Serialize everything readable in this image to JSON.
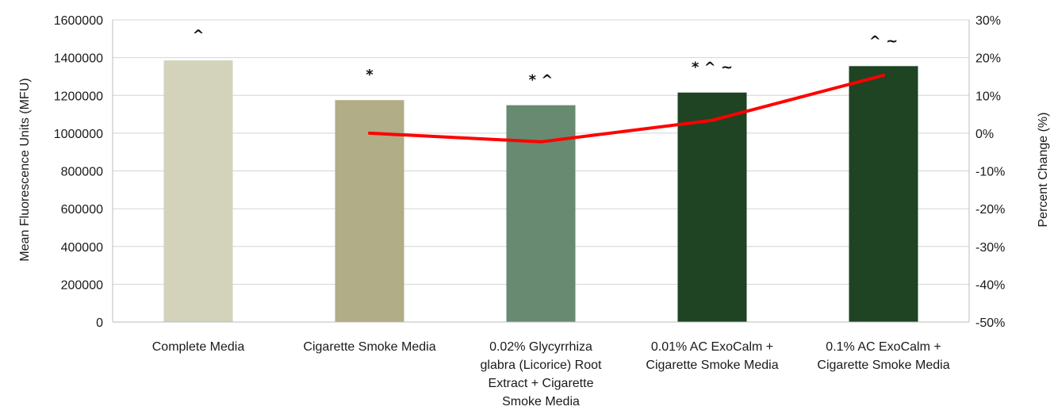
{
  "chart_data": {
    "type": "bar",
    "categories": [
      [
        "Complete Media"
      ],
      [
        "Cigarette Smoke Media"
      ],
      [
        "0.02% Glycyrrhiza",
        "glabra (Licorice) Root",
        "Extract + Cigarette",
        "Smoke Media"
      ],
      [
        "0.01% AC ExoCalm +",
        "Cigarette Smoke Media"
      ],
      [
        "0.1% AC ExoCalm +",
        "Cigarette Smoke Media"
      ]
    ],
    "series": [
      {
        "type": "bar",
        "axis": "left",
        "values": [
          1385000,
          1175000,
          1148000,
          1215000,
          1355000
        ],
        "colors": [
          "#d3d3bc",
          "#b0ad87",
          "#688a70",
          "#1e4423",
          "#1e4423"
        ]
      },
      {
        "type": "line",
        "axis": "right",
        "color": "#ff0000",
        "values": [
          null,
          0,
          -2.3,
          3.4,
          15.3
        ]
      }
    ],
    "markers": [
      "^",
      "*",
      "* ^",
      "* ^ ~",
      "^ ~"
    ],
    "ylabel": "Mean Fluorescence Units (MFU)",
    "ylabel_right": "Percent Change (%)",
    "ylim": [
      0,
      1600000
    ],
    "yticks": [
      "0",
      "200000",
      "400000",
      "600000",
      "800000",
      "1000000",
      "1200000",
      "1400000",
      "1600000"
    ],
    "ylim_right": [
      -50,
      30
    ],
    "yticks_right": [
      "-50%",
      "-40%",
      "-30%",
      "-20%",
      "-10%",
      "0%",
      "10%",
      "20%",
      "30%"
    ],
    "grid": true,
    "legend": "none"
  }
}
